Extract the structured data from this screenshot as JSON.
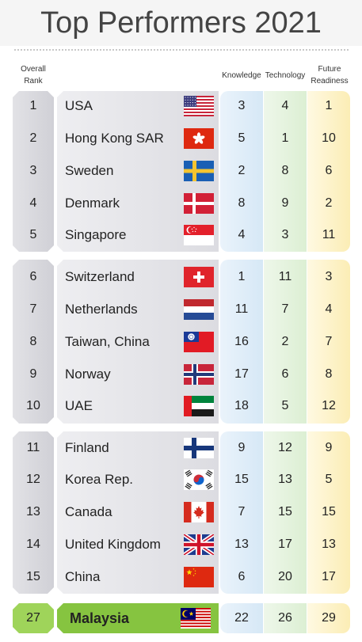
{
  "title": "Top Performers 2021",
  "headers": {
    "rank_line1": "Overall",
    "rank_line2": "Rank",
    "knowledge": "Knowledge",
    "technology": "Technology",
    "future_line1": "Future",
    "future_line2": "Readiness"
  },
  "rows": [
    {
      "rank": "1",
      "country": "USA",
      "flag": "usa-flag-icon",
      "knowledge": "3",
      "technology": "4",
      "future": "1"
    },
    {
      "rank": "2",
      "country": "Hong Kong SAR",
      "flag": "hong-kong-flag-icon",
      "knowledge": "5",
      "technology": "1",
      "future": "10"
    },
    {
      "rank": "3",
      "country": "Sweden",
      "flag": "sweden-flag-icon",
      "knowledge": "2",
      "technology": "8",
      "future": "6"
    },
    {
      "rank": "4",
      "country": "Denmark",
      "flag": "denmark-flag-icon",
      "knowledge": "8",
      "technology": "9",
      "future": "2"
    },
    {
      "rank": "5",
      "country": "Singapore",
      "flag": "singapore-flag-icon",
      "knowledge": "4",
      "technology": "3",
      "future": "11"
    },
    {
      "rank": "6",
      "country": "Switzerland",
      "flag": "switzerland-flag-icon",
      "knowledge": "1",
      "technology": "11",
      "future": "3"
    },
    {
      "rank": "7",
      "country": "Netherlands",
      "flag": "netherlands-flag-icon",
      "knowledge": "11",
      "technology": "7",
      "future": "4"
    },
    {
      "rank": "8",
      "country": "Taiwan, China",
      "flag": "taiwan-flag-icon",
      "knowledge": "16",
      "technology": "2",
      "future": "7"
    },
    {
      "rank": "9",
      "country": "Norway",
      "flag": "norway-flag-icon",
      "knowledge": "17",
      "technology": "6",
      "future": "8"
    },
    {
      "rank": "10",
      "country": "UAE",
      "flag": "uae-flag-icon",
      "knowledge": "18",
      "technology": "5",
      "future": "12"
    },
    {
      "rank": "11",
      "country": "Finland",
      "flag": "finland-flag-icon",
      "knowledge": "9",
      "technology": "12",
      "future": "9"
    },
    {
      "rank": "12",
      "country": "Korea Rep.",
      "flag": "korea-flag-icon",
      "knowledge": "15",
      "technology": "13",
      "future": "5"
    },
    {
      "rank": "13",
      "country": "Canada",
      "flag": "canada-flag-icon",
      "knowledge": "7",
      "technology": "15",
      "future": "15"
    },
    {
      "rank": "14",
      "country": "United Kingdom",
      "flag": "uk-flag-icon",
      "knowledge": "13",
      "technology": "17",
      "future": "13"
    },
    {
      "rank": "15",
      "country": "China",
      "flag": "china-flag-icon",
      "knowledge": "6",
      "technology": "20",
      "future": "17"
    }
  ],
  "highlight": {
    "rank": "27",
    "country": "Malaysia",
    "flag": "malaysia-flag-icon",
    "knowledge": "22",
    "technology": "26",
    "future": "29"
  },
  "colors": {
    "rank_fill": "#d6d6dc",
    "name_fill": "#e4e4e8",
    "knowledge_fill": "#dde9f6",
    "technology_fill": "#e1f0da",
    "future_fill": "#fcf0c0",
    "highlight_green": "#86c440"
  }
}
